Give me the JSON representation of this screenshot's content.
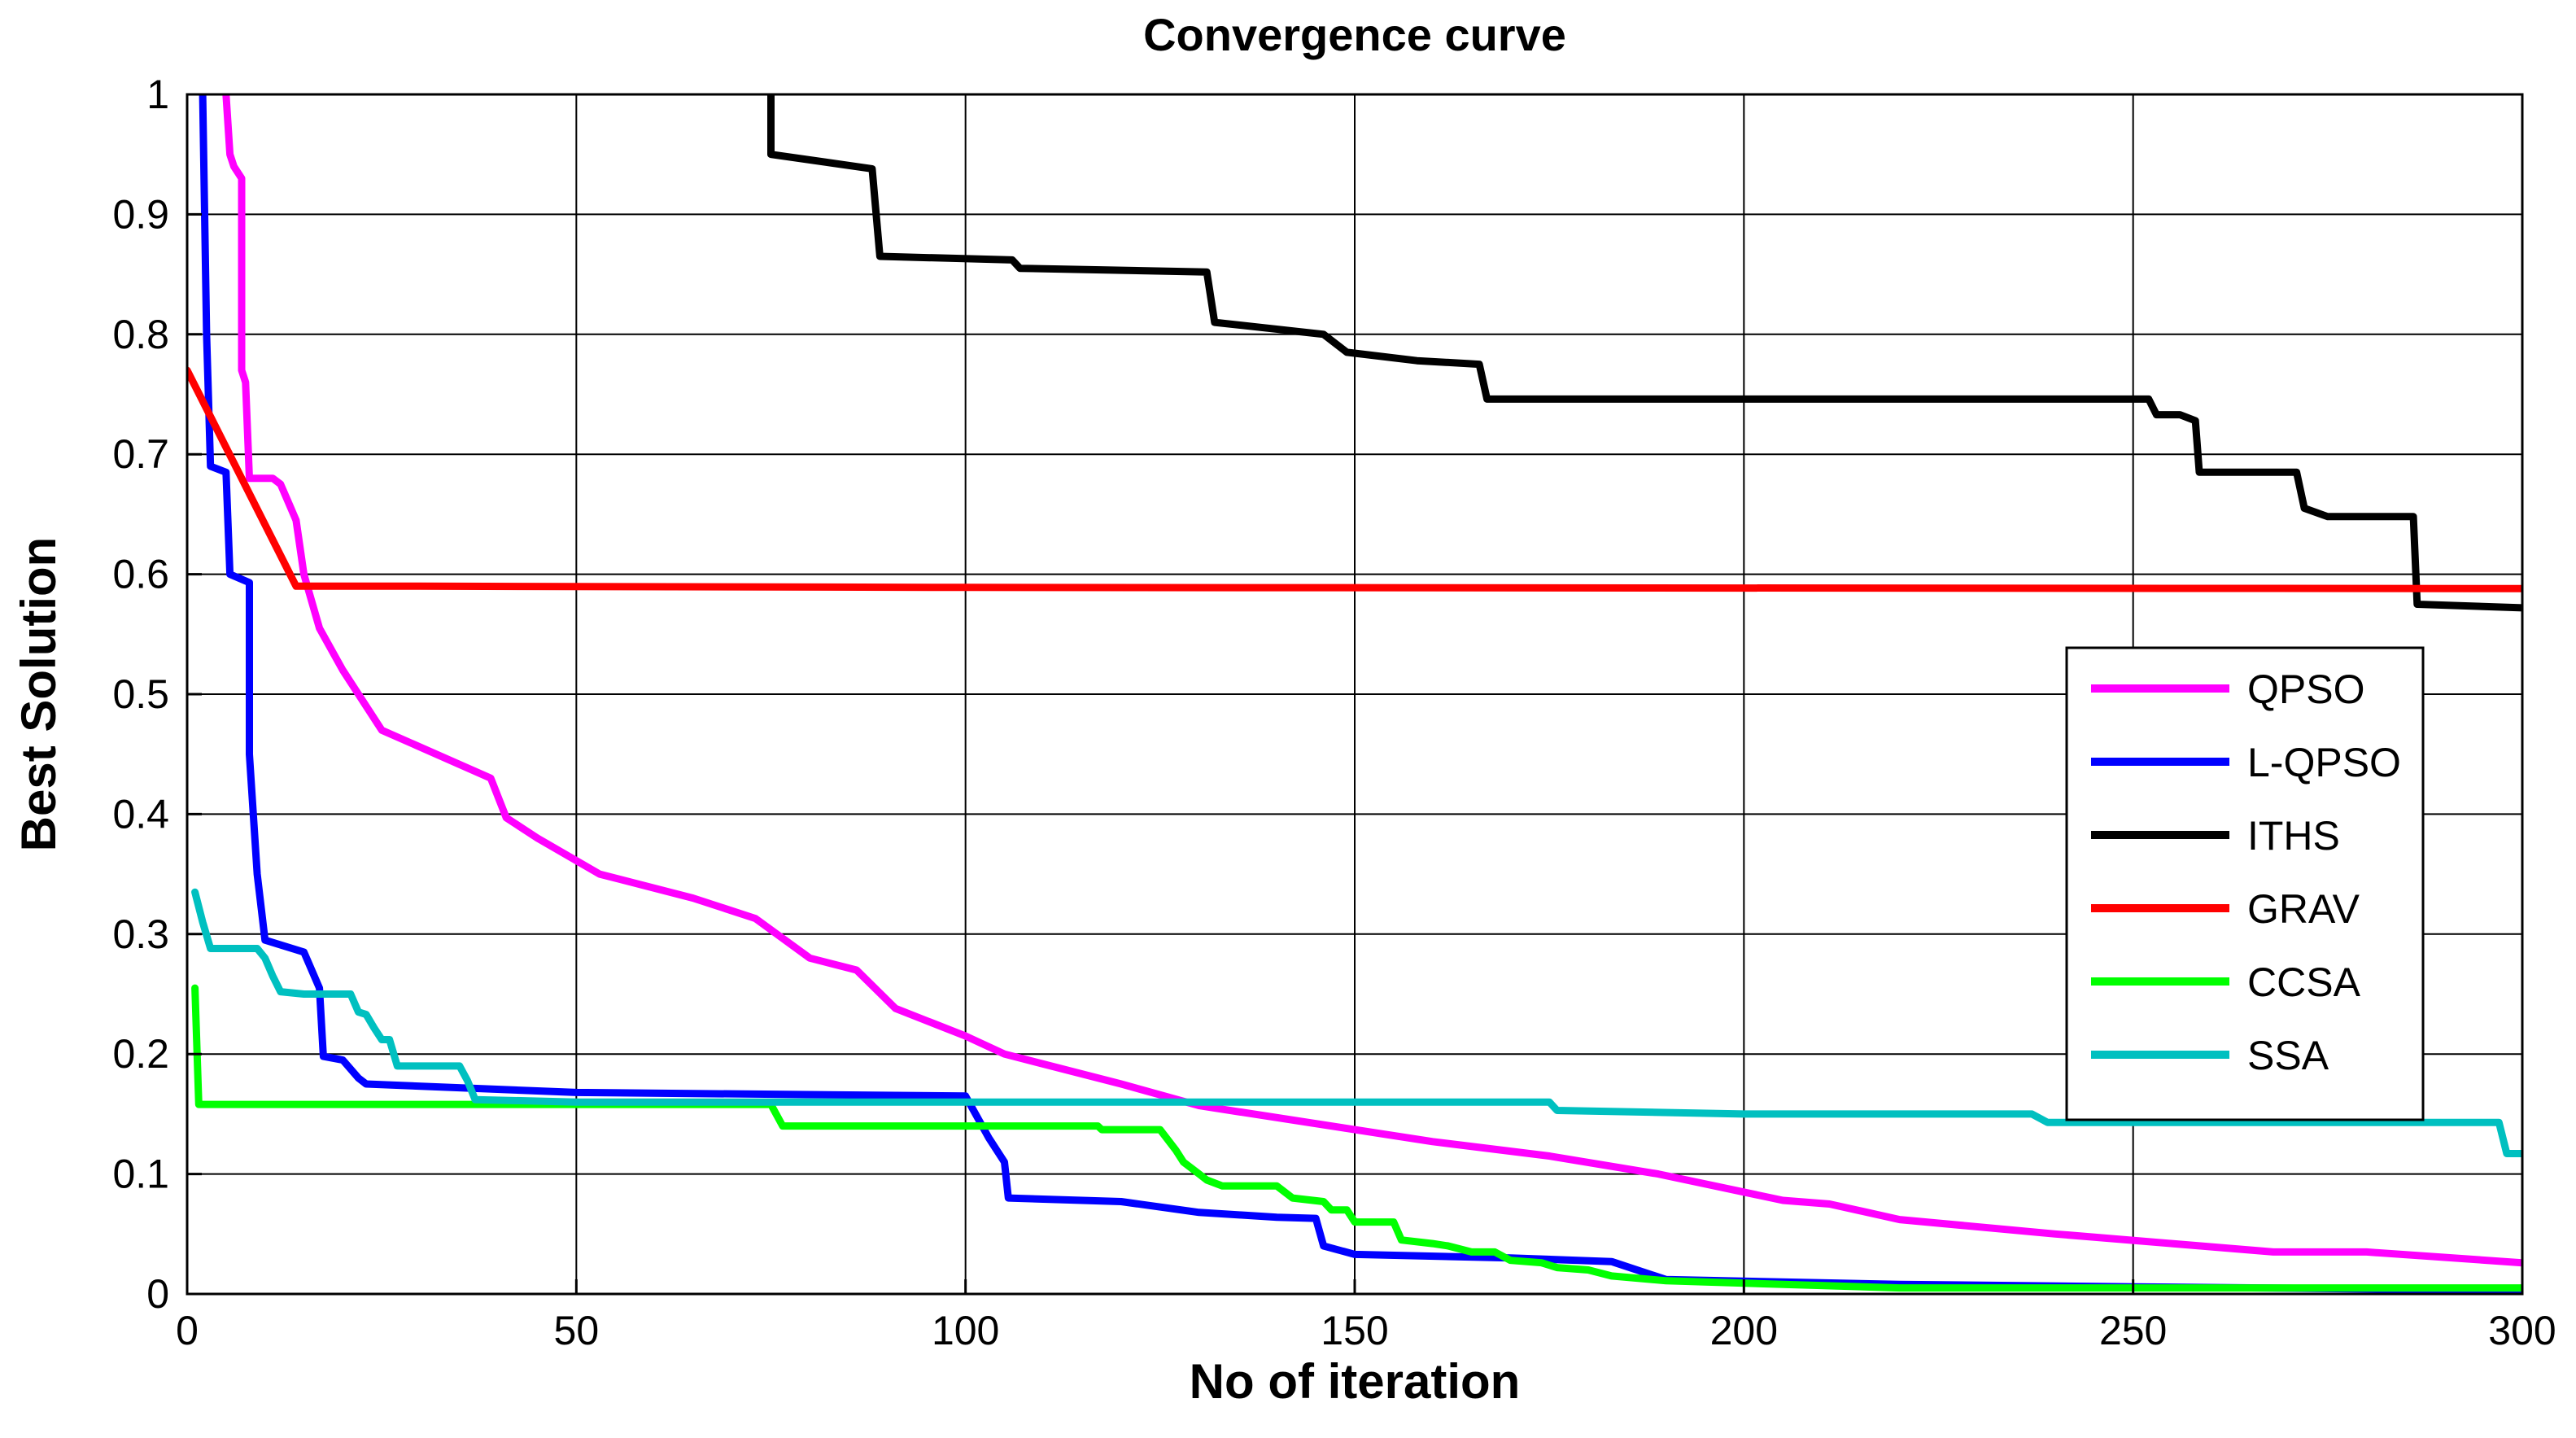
{
  "chart_data": {
    "type": "line",
    "title": "Convergence curve",
    "xlabel": "No of iteration",
    "ylabel": "Best Solution",
    "xlim": [
      0,
      300
    ],
    "ylim": [
      0,
      1
    ],
    "xticks": [
      0,
      50,
      100,
      150,
      200,
      250,
      300
    ],
    "yticks": [
      0,
      0.1,
      0.2,
      0.3,
      0.4,
      0.5,
      0.6,
      0.7,
      0.8,
      0.9,
      1
    ],
    "ytick_labels": [
      "0",
      "0.1",
      "0.2",
      "0.3",
      "0.4",
      "0.5",
      "0.6",
      "0.7",
      "0.8",
      "0.9",
      "1"
    ],
    "grid": true,
    "legend_position": "right",
    "series": [
      {
        "name": "QPSO",
        "color": "#ff00ff",
        "points": [
          [
            5,
            1.0
          ],
          [
            5.5,
            0.95
          ],
          [
            6,
            0.94
          ],
          [
            7,
            0.93
          ],
          [
            7,
            0.77
          ],
          [
            7.5,
            0.76
          ],
          [
            8,
            0.68
          ],
          [
            11,
            0.68
          ],
          [
            12,
            0.675
          ],
          [
            13,
            0.66
          ],
          [
            14,
            0.645
          ],
          [
            15,
            0.6
          ],
          [
            17,
            0.555
          ],
          [
            20,
            0.52
          ],
          [
            25,
            0.47
          ],
          [
            39,
            0.43
          ],
          [
            41,
            0.397
          ],
          [
            45,
            0.38
          ],
          [
            53,
            0.35
          ],
          [
            65,
            0.33
          ],
          [
            73,
            0.313
          ],
          [
            80,
            0.28
          ],
          [
            86,
            0.27
          ],
          [
            91,
            0.238
          ],
          [
            100,
            0.215
          ],
          [
            105,
            0.2
          ],
          [
            120,
            0.175
          ],
          [
            130,
            0.157
          ],
          [
            150,
            0.137
          ],
          [
            160,
            0.127
          ],
          [
            175,
            0.115
          ],
          [
            189,
            0.1
          ],
          [
            205,
            0.078
          ],
          [
            211,
            0.075
          ],
          [
            220,
            0.062
          ],
          [
            240,
            0.05
          ],
          [
            255,
            0.042
          ],
          [
            268,
            0.035
          ],
          [
            280,
            0.035
          ],
          [
            300,
            0.026
          ]
        ]
      },
      {
        "name": "L-QPSO",
        "color": "#0000ff",
        "points": [
          [
            2,
            1.0
          ],
          [
            2.5,
            0.8
          ],
          [
            3,
            0.69
          ],
          [
            5,
            0.685
          ],
          [
            5.5,
            0.6
          ],
          [
            8,
            0.593
          ],
          [
            8,
            0.45
          ],
          [
            9,
            0.35
          ],
          [
            10,
            0.295
          ],
          [
            15,
            0.285
          ],
          [
            17,
            0.255
          ],
          [
            17.5,
            0.198
          ],
          [
            20,
            0.195
          ],
          [
            22,
            0.18
          ],
          [
            23,
            0.175
          ],
          [
            50,
            0.168
          ],
          [
            100,
            0.165
          ],
          [
            103,
            0.13
          ],
          [
            105,
            0.11
          ],
          [
            105.5,
            0.08
          ],
          [
            120,
            0.077
          ],
          [
            130,
            0.068
          ],
          [
            140,
            0.064
          ],
          [
            145,
            0.063
          ],
          [
            146,
            0.04
          ],
          [
            150,
            0.033
          ],
          [
            170,
            0.03
          ],
          [
            183,
            0.027
          ],
          [
            190,
            0.012
          ],
          [
            220,
            0.008
          ],
          [
            250,
            0.006
          ],
          [
            300,
            0.003
          ]
        ]
      },
      {
        "name": "ITHS",
        "color": "#000000",
        "points": [
          [
            75,
            1.0
          ],
          [
            75,
            0.95
          ],
          [
            88,
            0.938
          ],
          [
            89,
            0.865
          ],
          [
            106,
            0.862
          ],
          [
            107,
            0.855
          ],
          [
            131,
            0.852
          ],
          [
            132,
            0.81
          ],
          [
            146,
            0.8
          ],
          [
            149,
            0.785
          ],
          [
            158,
            0.778
          ],
          [
            166,
            0.775
          ],
          [
            167,
            0.746
          ],
          [
            252,
            0.746
          ],
          [
            253,
            0.733
          ],
          [
            256,
            0.733
          ],
          [
            258,
            0.728
          ],
          [
            258.5,
            0.685
          ],
          [
            271,
            0.685
          ],
          [
            272,
            0.655
          ],
          [
            275,
            0.648
          ],
          [
            286,
            0.648
          ],
          [
            286.5,
            0.575
          ],
          [
            300,
            0.572
          ]
        ]
      },
      {
        "name": "GRAV",
        "color": "#ff0000",
        "points": [
          [
            0,
            0.77
          ],
          [
            14,
            0.59
          ],
          [
            30,
            0.59
          ],
          [
            100,
            0.589
          ],
          [
            300,
            0.588
          ]
        ]
      },
      {
        "name": "CCSA",
        "color": "#00ff00",
        "points": [
          [
            1,
            0.255
          ],
          [
            1.5,
            0.158
          ],
          [
            75,
            0.158
          ],
          [
            76.5,
            0.14
          ],
          [
            100,
            0.14
          ],
          [
            105,
            0.14
          ],
          [
            117,
            0.14
          ],
          [
            117.5,
            0.137
          ],
          [
            125,
            0.137
          ],
          [
            127,
            0.12
          ],
          [
            128,
            0.11
          ],
          [
            130,
            0.1
          ],
          [
            131,
            0.095
          ],
          [
            133,
            0.09
          ],
          [
            140,
            0.09
          ],
          [
            142,
            0.08
          ],
          [
            146,
            0.077
          ],
          [
            147,
            0.07
          ],
          [
            149,
            0.07
          ],
          [
            150,
            0.06
          ],
          [
            155,
            0.06
          ],
          [
            156,
            0.045
          ],
          [
            160,
            0.042
          ],
          [
            162,
            0.04
          ],
          [
            165,
            0.035
          ],
          [
            168,
            0.035
          ],
          [
            170,
            0.028
          ],
          [
            174,
            0.026
          ],
          [
            176,
            0.022
          ],
          [
            180,
            0.02
          ],
          [
            183,
            0.015
          ],
          [
            190,
            0.011
          ],
          [
            195,
            0.01
          ],
          [
            220,
            0.005
          ],
          [
            300,
            0.005
          ]
        ]
      },
      {
        "name": "SSA",
        "color": "#00c0c0",
        "points": [
          [
            1,
            0.335
          ],
          [
            2,
            0.31
          ],
          [
            3,
            0.288
          ],
          [
            9,
            0.288
          ],
          [
            10,
            0.28
          ],
          [
            11,
            0.265
          ],
          [
            12,
            0.252
          ],
          [
            15,
            0.25
          ],
          [
            21,
            0.25
          ],
          [
            22,
            0.235
          ],
          [
            23,
            0.233
          ],
          [
            24,
            0.222
          ],
          [
            25,
            0.212
          ],
          [
            26,
            0.212
          ],
          [
            27,
            0.19
          ],
          [
            35,
            0.19
          ],
          [
            36,
            0.178
          ],
          [
            37,
            0.162
          ],
          [
            50,
            0.16
          ],
          [
            175,
            0.16
          ],
          [
            176,
            0.153
          ],
          [
            200,
            0.15
          ],
          [
            237,
            0.15
          ],
          [
            239,
            0.143
          ],
          [
            297,
            0.143
          ],
          [
            298,
            0.117
          ],
          [
            300,
            0.117
          ]
        ]
      }
    ]
  }
}
